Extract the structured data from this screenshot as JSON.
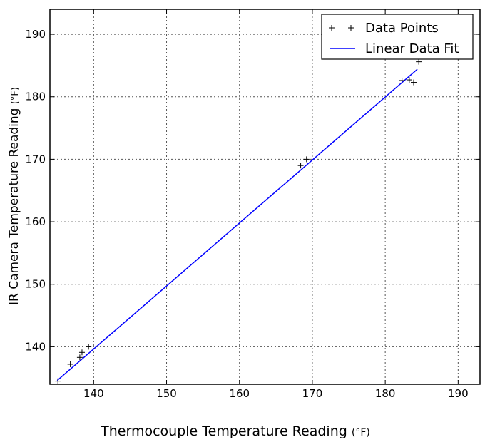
{
  "chart_data": {
    "type": "scatter",
    "xlabel": "Thermocouple Temperature Reading",
    "xlabel_unit": "(°F)",
    "ylabel": "IR Camera Temperature Reading",
    "ylabel_unit": "(°F)",
    "xlim": [
      134,
      193
    ],
    "ylim": [
      134,
      194
    ],
    "xticks": [
      140,
      150,
      160,
      170,
      180,
      190
    ],
    "yticks": [
      140,
      150,
      160,
      170,
      180,
      190
    ],
    "grid": true,
    "legend_position": "top-right",
    "series": [
      {
        "name": "Data Points",
        "kind": "markers",
        "marker": "+",
        "color": "#000000",
        "points": [
          [
            135.1,
            134.5
          ],
          [
            136.8,
            137.2
          ],
          [
            138.1,
            138.3
          ],
          [
            138.4,
            139.1
          ],
          [
            139.3,
            140.0
          ],
          [
            168.4,
            169.0
          ],
          [
            169.2,
            170.0
          ],
          [
            182.3,
            182.6
          ],
          [
            183.3,
            182.7
          ],
          [
            183.9,
            182.3
          ],
          [
            184.6,
            185.6
          ]
        ]
      },
      {
        "name": "Linear Data Fit",
        "kind": "line",
        "color": "#0000ff",
        "points": [
          [
            135.0,
            134.6
          ],
          [
            184.4,
            184.4
          ]
        ]
      }
    ]
  }
}
